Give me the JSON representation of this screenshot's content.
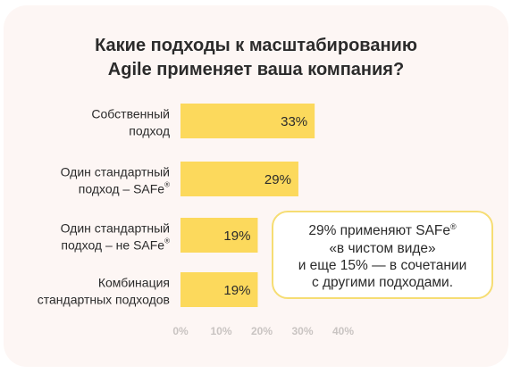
{
  "chart_data": {
    "type": "bar",
    "orientation": "horizontal",
    "title": [
      "Какие подходы к масштабированию",
      "Agile применяет ваша компания?"
    ],
    "categories": [
      [
        "Собственный",
        "подход"
      ],
      [
        "Один стандартный",
        "подход – SAFe"
      ],
      [
        "Один стандартный",
        "подход – не SAFe"
      ],
      [
        "Комбинация",
        "стандартных подходов"
      ]
    ],
    "category_marks": [
      "",
      "®",
      "®",
      ""
    ],
    "values": [
      33,
      29,
      19,
      19
    ],
    "value_labels": [
      "33%",
      "29%",
      "19%",
      "19%"
    ],
    "xlim": [
      0,
      40
    ],
    "x_ticks": [
      "0%",
      "10%",
      "20%",
      "30%",
      "40%"
    ],
    "grid": false,
    "bar_color": "#fcd95c"
  },
  "note": {
    "text": "29% применяют SAFe® «в чистом виде» и еще 15% — в сочетании с другими подходами.",
    "lines": [
      "29% применяют SAFe®",
      "«в чистом виде»",
      "и еще 15% — в сочетании",
      "с другими подходами."
    ],
    "border_color": "#f6dd73"
  },
  "colors": {
    "card_background": "#fdf6f4",
    "text": "#2b2b2b",
    "tick_text": "#c9c4c2"
  }
}
